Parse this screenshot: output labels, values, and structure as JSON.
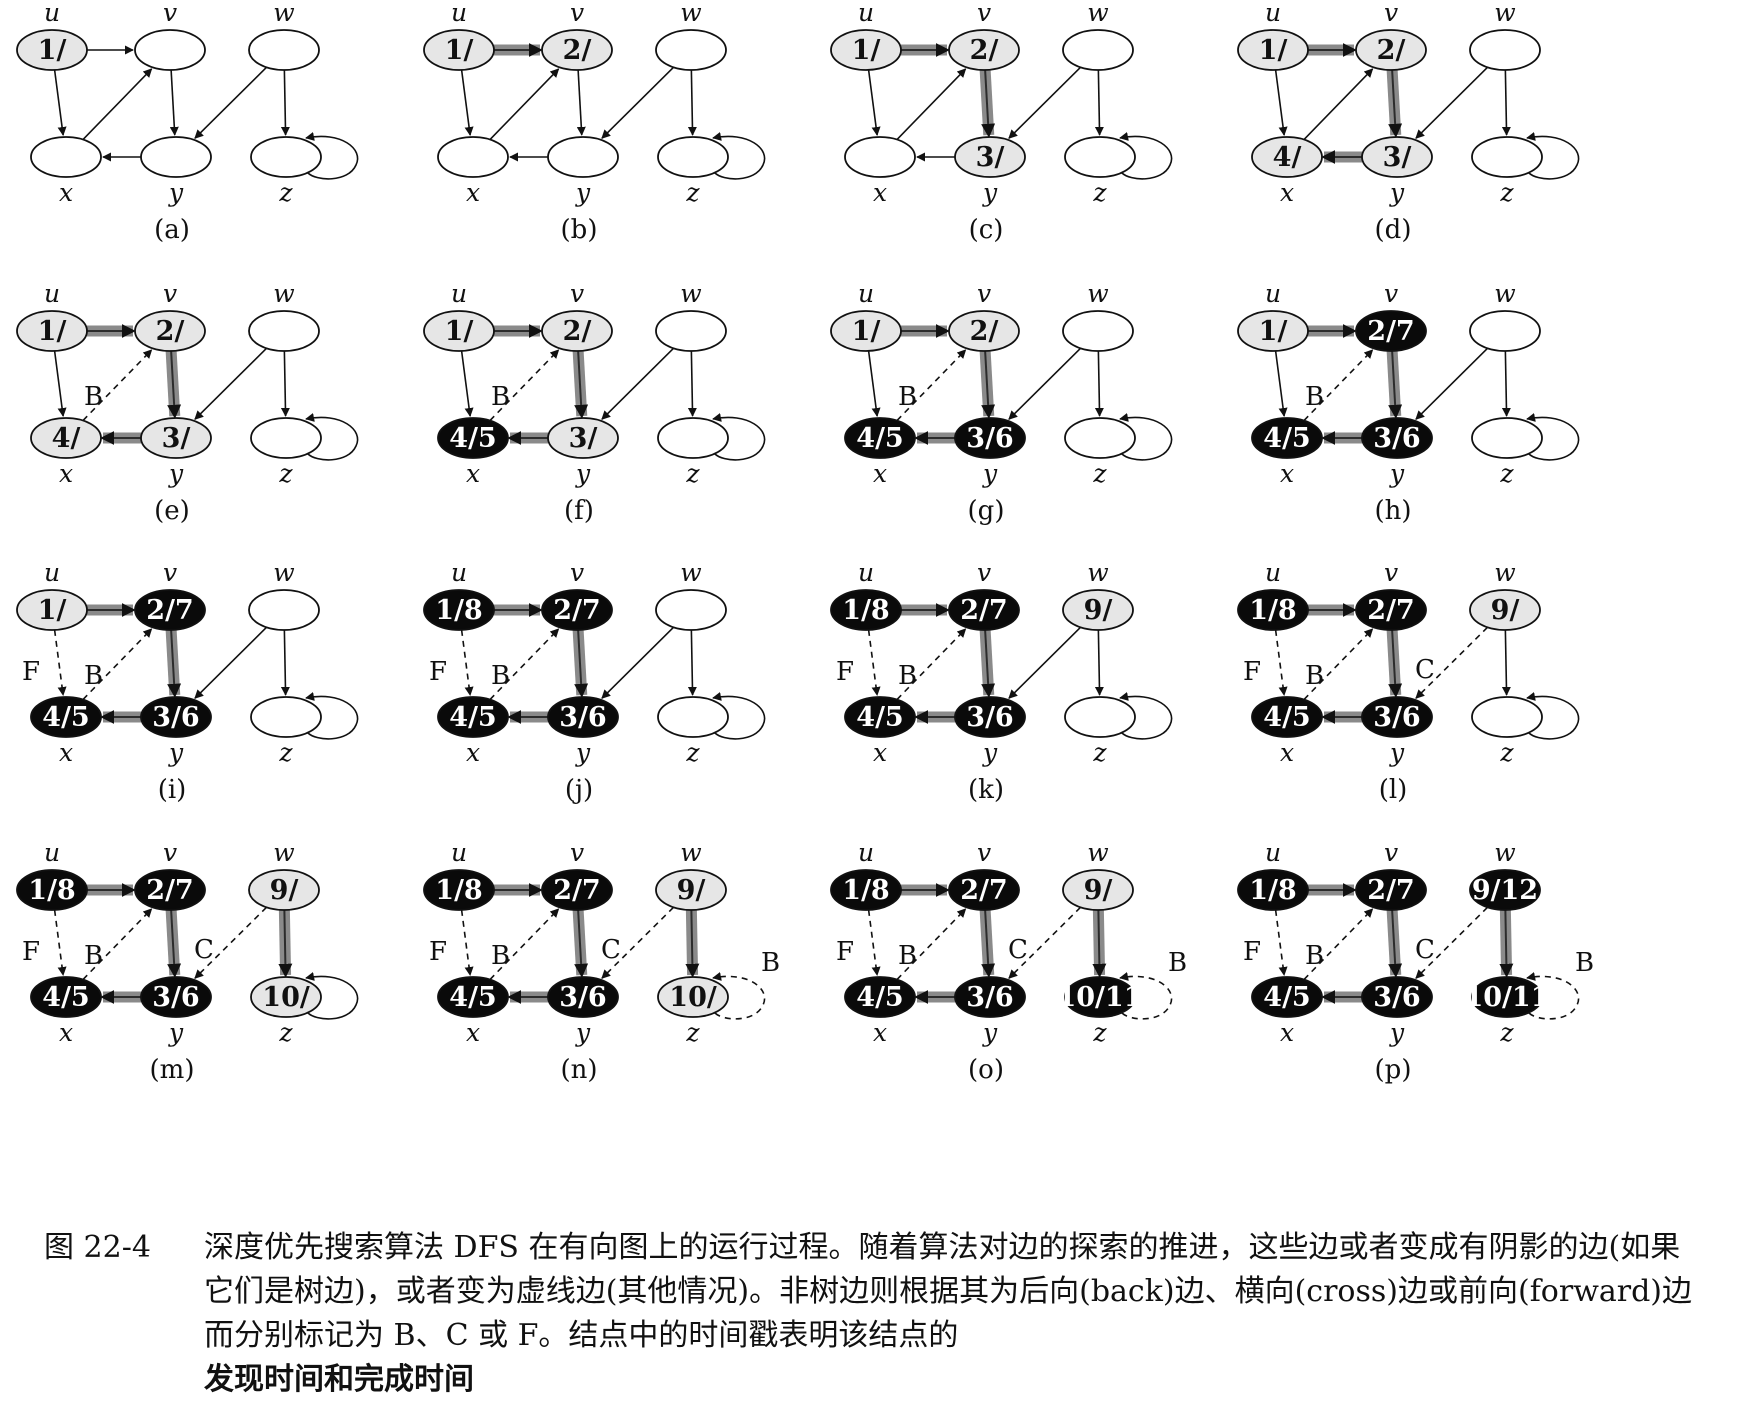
{
  "vertices": [
    {
      "id": "u",
      "name": "u"
    },
    {
      "id": "v",
      "name": "v"
    },
    {
      "id": "w",
      "name": "w"
    },
    {
      "id": "x",
      "name": "x"
    },
    {
      "id": "y",
      "name": "y"
    },
    {
      "id": "z",
      "name": "z"
    }
  ],
  "edges": [
    {
      "from": "u",
      "to": "v"
    },
    {
      "from": "u",
      "to": "x"
    },
    {
      "from": "x",
      "to": "v"
    },
    {
      "from": "v",
      "to": "y"
    },
    {
      "from": "y",
      "to": "x"
    },
    {
      "from": "w",
      "to": "y"
    },
    {
      "from": "w",
      "to": "z"
    },
    {
      "from": "z",
      "to": "z"
    }
  ],
  "colors": {
    "white": "#ffffff",
    "gray": "#e6e6e6",
    "black": "#0a0a0a",
    "tree_edge": "#8a8a8a"
  },
  "panels": [
    {
      "caption": "(a)",
      "nodes": {
        "u": {
          "label": "1/",
          "state": "gray"
        },
        "v": {
          "label": "",
          "state": "white"
        },
        "w": {
          "label": "",
          "state": "white"
        },
        "x": {
          "label": "",
          "state": "white"
        },
        "y": {
          "label": "",
          "state": "white"
        },
        "z": {
          "label": "",
          "state": "white"
        }
      },
      "edge_types": {}
    },
    {
      "caption": "(b)",
      "nodes": {
        "u": {
          "label": "1/",
          "state": "gray"
        },
        "v": {
          "label": "2/",
          "state": "gray"
        },
        "w": {
          "label": "",
          "state": "white"
        },
        "x": {
          "label": "",
          "state": "white"
        },
        "y": {
          "label": "",
          "state": "white"
        },
        "z": {
          "label": "",
          "state": "white"
        }
      },
      "edge_types": {
        "u-v": "tree"
      }
    },
    {
      "caption": "(c)",
      "nodes": {
        "u": {
          "label": "1/",
          "state": "gray"
        },
        "v": {
          "label": "2/",
          "state": "gray"
        },
        "w": {
          "label": "",
          "state": "white"
        },
        "x": {
          "label": "",
          "state": "white"
        },
        "y": {
          "label": "3/",
          "state": "gray"
        },
        "z": {
          "label": "",
          "state": "white"
        }
      },
      "edge_types": {
        "u-v": "tree",
        "v-y": "tree"
      }
    },
    {
      "caption": "(d)",
      "nodes": {
        "u": {
          "label": "1/",
          "state": "gray"
        },
        "v": {
          "label": "2/",
          "state": "gray"
        },
        "w": {
          "label": "",
          "state": "white"
        },
        "x": {
          "label": "4/",
          "state": "gray"
        },
        "y": {
          "label": "3/",
          "state": "gray"
        },
        "z": {
          "label": "",
          "state": "white"
        }
      },
      "edge_types": {
        "u-v": "tree",
        "v-y": "tree",
        "y-x": "tree"
      }
    },
    {
      "caption": "(e)",
      "nodes": {
        "u": {
          "label": "1/",
          "state": "gray"
        },
        "v": {
          "label": "2/",
          "state": "gray"
        },
        "w": {
          "label": "",
          "state": "white"
        },
        "x": {
          "label": "4/",
          "state": "gray"
        },
        "y": {
          "label": "3/",
          "state": "gray"
        },
        "z": {
          "label": "",
          "state": "white"
        }
      },
      "edge_types": {
        "u-v": "tree",
        "v-y": "tree",
        "y-x": "tree",
        "x-v": "B"
      }
    },
    {
      "caption": "(f)",
      "nodes": {
        "u": {
          "label": "1/",
          "state": "gray"
        },
        "v": {
          "label": "2/",
          "state": "gray"
        },
        "w": {
          "label": "",
          "state": "white"
        },
        "x": {
          "label": "4/5",
          "state": "black"
        },
        "y": {
          "label": "3/",
          "state": "gray"
        },
        "z": {
          "label": "",
          "state": "white"
        }
      },
      "edge_types": {
        "u-v": "tree",
        "v-y": "tree",
        "y-x": "tree",
        "x-v": "B"
      }
    },
    {
      "caption": "(g)",
      "nodes": {
        "u": {
          "label": "1/",
          "state": "gray"
        },
        "v": {
          "label": "2/",
          "state": "gray"
        },
        "w": {
          "label": "",
          "state": "white"
        },
        "x": {
          "label": "4/5",
          "state": "black"
        },
        "y": {
          "label": "3/6",
          "state": "black"
        },
        "z": {
          "label": "",
          "state": "white"
        }
      },
      "edge_types": {
        "u-v": "tree",
        "v-y": "tree",
        "y-x": "tree",
        "x-v": "B"
      }
    },
    {
      "caption": "(h)",
      "nodes": {
        "u": {
          "label": "1/",
          "state": "gray"
        },
        "v": {
          "label": "2/7",
          "state": "black"
        },
        "w": {
          "label": "",
          "state": "white"
        },
        "x": {
          "label": "4/5",
          "state": "black"
        },
        "y": {
          "label": "3/6",
          "state": "black"
        },
        "z": {
          "label": "",
          "state": "white"
        }
      },
      "edge_types": {
        "u-v": "tree",
        "v-y": "tree",
        "y-x": "tree",
        "x-v": "B"
      }
    },
    {
      "caption": "(i)",
      "nodes": {
        "u": {
          "label": "1/",
          "state": "gray"
        },
        "v": {
          "label": "2/7",
          "state": "black"
        },
        "w": {
          "label": "",
          "state": "white"
        },
        "x": {
          "label": "4/5",
          "state": "black"
        },
        "y": {
          "label": "3/6",
          "state": "black"
        },
        "z": {
          "label": "",
          "state": "white"
        }
      },
      "edge_types": {
        "u-v": "tree",
        "v-y": "tree",
        "y-x": "tree",
        "x-v": "B",
        "u-x": "F"
      }
    },
    {
      "caption": "(j)",
      "nodes": {
        "u": {
          "label": "1/8",
          "state": "black"
        },
        "v": {
          "label": "2/7",
          "state": "black"
        },
        "w": {
          "label": "",
          "state": "white"
        },
        "x": {
          "label": "4/5",
          "state": "black"
        },
        "y": {
          "label": "3/6",
          "state": "black"
        },
        "z": {
          "label": "",
          "state": "white"
        }
      },
      "edge_types": {
        "u-v": "tree",
        "v-y": "tree",
        "y-x": "tree",
        "x-v": "B",
        "u-x": "F"
      }
    },
    {
      "caption": "(k)",
      "nodes": {
        "u": {
          "label": "1/8",
          "state": "black"
        },
        "v": {
          "label": "2/7",
          "state": "black"
        },
        "w": {
          "label": "9/",
          "state": "gray"
        },
        "x": {
          "label": "4/5",
          "state": "black"
        },
        "y": {
          "label": "3/6",
          "state": "black"
        },
        "z": {
          "label": "",
          "state": "white"
        }
      },
      "edge_types": {
        "u-v": "tree",
        "v-y": "tree",
        "y-x": "tree",
        "x-v": "B",
        "u-x": "F"
      }
    },
    {
      "caption": "(l)",
      "nodes": {
        "u": {
          "label": "1/8",
          "state": "black"
        },
        "v": {
          "label": "2/7",
          "state": "black"
        },
        "w": {
          "label": "9/",
          "state": "gray"
        },
        "x": {
          "label": "4/5",
          "state": "black"
        },
        "y": {
          "label": "3/6",
          "state": "black"
        },
        "z": {
          "label": "",
          "state": "white"
        }
      },
      "edge_types": {
        "u-v": "tree",
        "v-y": "tree",
        "y-x": "tree",
        "x-v": "B",
        "u-x": "F",
        "w-y": "C"
      }
    },
    {
      "caption": "(m)",
      "nodes": {
        "u": {
          "label": "1/8",
          "state": "black"
        },
        "v": {
          "label": "2/7",
          "state": "black"
        },
        "w": {
          "label": "9/",
          "state": "gray"
        },
        "x": {
          "label": "4/5",
          "state": "black"
        },
        "y": {
          "label": "3/6",
          "state": "black"
        },
        "z": {
          "label": "10/",
          "state": "gray"
        }
      },
      "edge_types": {
        "u-v": "tree",
        "v-y": "tree",
        "y-x": "tree",
        "x-v": "B",
        "u-x": "F",
        "w-y": "C",
        "w-z": "tree"
      }
    },
    {
      "caption": "(n)",
      "nodes": {
        "u": {
          "label": "1/8",
          "state": "black"
        },
        "v": {
          "label": "2/7",
          "state": "black"
        },
        "w": {
          "label": "9/",
          "state": "gray"
        },
        "x": {
          "label": "4/5",
          "state": "black"
        },
        "y": {
          "label": "3/6",
          "state": "black"
        },
        "z": {
          "label": "10/",
          "state": "gray"
        }
      },
      "edge_types": {
        "u-v": "tree",
        "v-y": "tree",
        "y-x": "tree",
        "x-v": "B",
        "u-x": "F",
        "w-y": "C",
        "w-z": "tree",
        "z-z": "B"
      }
    },
    {
      "caption": "(o)",
      "nodes": {
        "u": {
          "label": "1/8",
          "state": "black"
        },
        "v": {
          "label": "2/7",
          "state": "black"
        },
        "w": {
          "label": "9/",
          "state": "gray"
        },
        "x": {
          "label": "4/5",
          "state": "black"
        },
        "y": {
          "label": "3/6",
          "state": "black"
        },
        "z": {
          "label": "10/11",
          "state": "black"
        }
      },
      "edge_types": {
        "u-v": "tree",
        "v-y": "tree",
        "y-x": "tree",
        "x-v": "B",
        "u-x": "F",
        "w-y": "C",
        "w-z": "tree",
        "z-z": "B"
      }
    },
    {
      "caption": "(p)",
      "nodes": {
        "u": {
          "label": "1/8",
          "state": "black"
        },
        "v": {
          "label": "2/7",
          "state": "black"
        },
        "w": {
          "label": "9/12",
          "state": "black"
        },
        "x": {
          "label": "4/5",
          "state": "black"
        },
        "y": {
          "label": "3/6",
          "state": "black"
        },
        "z": {
          "label": "10/11",
          "state": "black"
        }
      },
      "edge_types": {
        "u-v": "tree",
        "v-y": "tree",
        "y-x": "tree",
        "x-v": "B",
        "u-x": "F",
        "w-y": "C",
        "w-z": "tree",
        "z-z": "B"
      }
    }
  ],
  "figure_caption": {
    "label": "图 22-4",
    "text": "深度优先搜索算法 DFS 在有向图上的运行过程。随着算法对边的探索的推进，这些边或者变成有阴影的边(如果它们是树边)，或者变为虚线边(其他情况)。非树边则根据其为后向(back)边、横向(cross)边或前向(forward)边而分别标记为 B、C 或 F。结点中的时间戳表明该结点的",
    "bold": "发现时间和完成时间"
  }
}
